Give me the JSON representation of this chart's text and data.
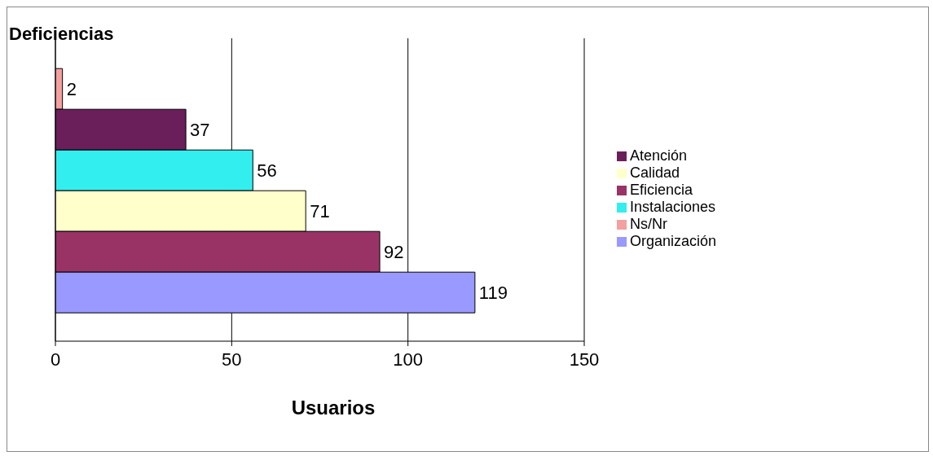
{
  "chart_data": {
    "type": "bar",
    "orientation": "horizontal",
    "title": "Deficiencias",
    "xlabel": "Usuarios",
    "categories": [
      null
    ],
    "series": [
      {
        "name": "Ns/Nr",
        "color": "#f4a0a0",
        "values": [
          2
        ]
      },
      {
        "name": "Atención",
        "color": "#6b1f5a",
        "values": [
          37
        ]
      },
      {
        "name": "Instalaciones",
        "color": "#33eeee",
        "values": [
          56
        ]
      },
      {
        "name": "Calidad",
        "color": "#ffffcc",
        "values": [
          71
        ]
      },
      {
        "name": "Eficiencia",
        "color": "#993366",
        "values": [
          92
        ]
      },
      {
        "name": "Organización",
        "color": "#9999ff",
        "values": [
          119
        ]
      }
    ],
    "xlim": [
      0,
      150
    ],
    "xticks": [
      0,
      50,
      100,
      150
    ],
    "grid": "x",
    "legend": "right",
    "data_labels": true,
    "tick_labels": "x"
  }
}
